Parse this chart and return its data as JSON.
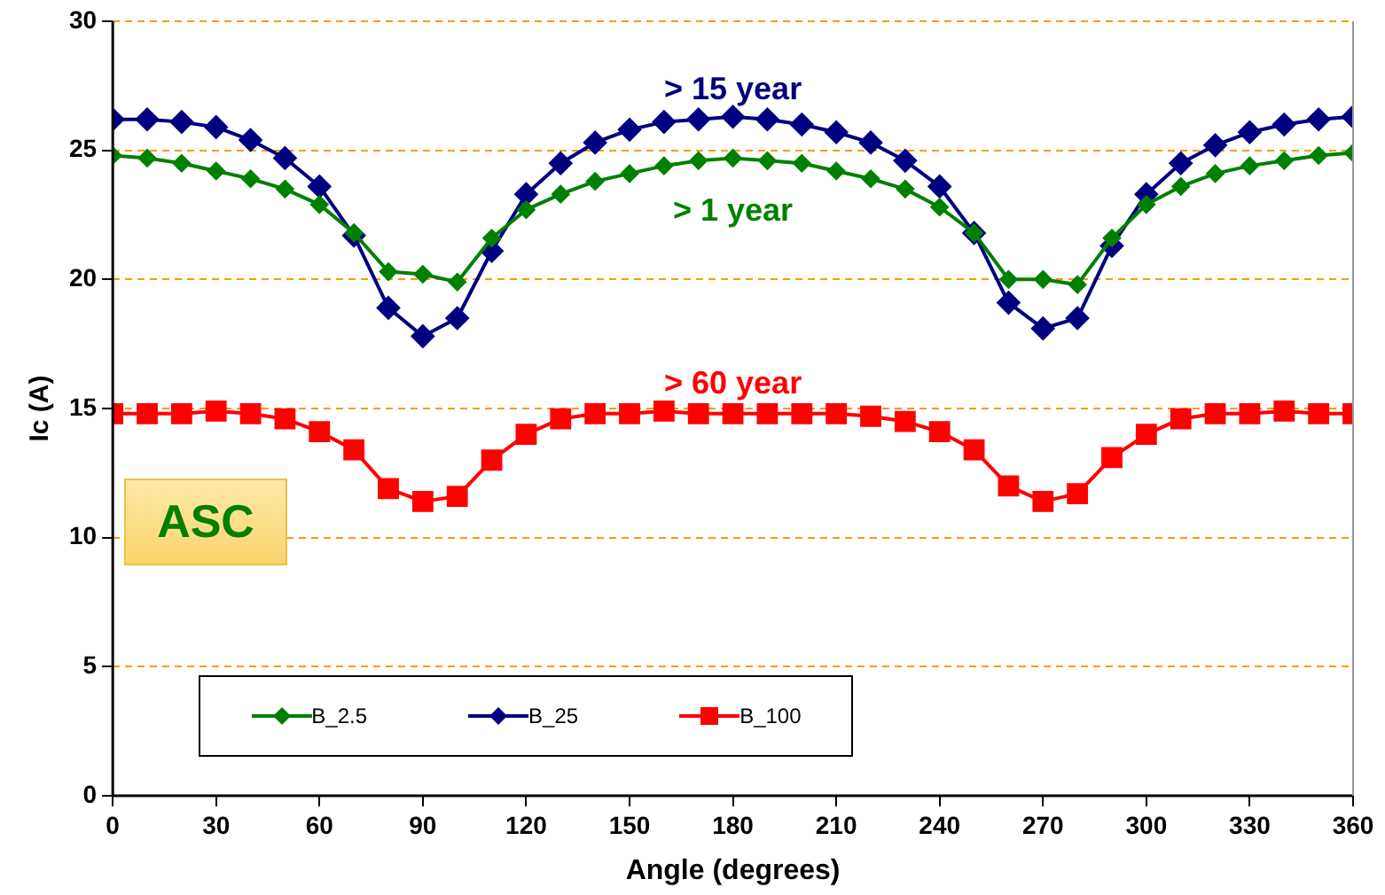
{
  "chart_data": {
    "type": "line",
    "xlabel": "Angle (degrees)",
    "ylabel": "Ic (A)",
    "x": [
      0,
      10,
      20,
      30,
      40,
      50,
      60,
      70,
      80,
      90,
      100,
      110,
      120,
      130,
      140,
      150,
      160,
      170,
      180,
      190,
      200,
      210,
      220,
      230,
      240,
      250,
      260,
      270,
      280,
      290,
      300,
      310,
      320,
      330,
      340,
      350,
      360
    ],
    "series": [
      {
        "name": "B_2.5",
        "color": "#008000",
        "marker": "diamond",
        "values": [
          24.8,
          24.7,
          24.5,
          24.2,
          23.9,
          23.5,
          22.9,
          21.8,
          20.3,
          20.2,
          19.9,
          21.6,
          22.7,
          23.3,
          23.8,
          24.1,
          24.4,
          24.6,
          24.7,
          24.6,
          24.5,
          24.2,
          23.9,
          23.5,
          22.8,
          21.8,
          20.0,
          20.0,
          19.8,
          21.6,
          22.9,
          23.6,
          24.1,
          24.4,
          24.6,
          24.8,
          24.9
        ]
      },
      {
        "name": "B_25",
        "color": "#000080",
        "marker": "diamond",
        "values": [
          26.2,
          26.2,
          26.1,
          25.9,
          25.4,
          24.7,
          23.6,
          21.7,
          18.9,
          17.8,
          18.5,
          21.1,
          23.3,
          24.5,
          25.3,
          25.8,
          26.1,
          26.2,
          26.3,
          26.2,
          26.0,
          25.7,
          25.3,
          24.6,
          23.6,
          21.8,
          19.1,
          18.1,
          18.5,
          21.3,
          23.3,
          24.5,
          25.2,
          25.7,
          26.0,
          26.2,
          26.3
        ]
      },
      {
        "name": "B_100",
        "color": "#ff0000",
        "marker": "square",
        "values": [
          14.8,
          14.8,
          14.8,
          14.9,
          14.8,
          14.6,
          14.1,
          13.4,
          11.9,
          11.4,
          11.6,
          13.0,
          14.0,
          14.6,
          14.8,
          14.8,
          14.9,
          14.8,
          14.8,
          14.8,
          14.8,
          14.8,
          14.7,
          14.5,
          14.1,
          13.4,
          12.0,
          11.4,
          11.7,
          13.1,
          14.0,
          14.6,
          14.8,
          14.8,
          14.9,
          14.8,
          14.8
        ]
      }
    ],
    "xlim": [
      0,
      360
    ],
    "xticks": [
      0,
      30,
      60,
      90,
      120,
      150,
      180,
      210,
      240,
      270,
      300,
      330,
      360
    ],
    "ylim": [
      0,
      30
    ],
    "yticks": [
      0,
      5,
      10,
      15,
      20,
      25,
      30
    ],
    "grid": "y",
    "legend": "bottom",
    "line_style": "solid",
    "annotations": [
      "> 15 year",
      "> 1 year",
      "> 60 year",
      "ASC"
    ]
  }
}
